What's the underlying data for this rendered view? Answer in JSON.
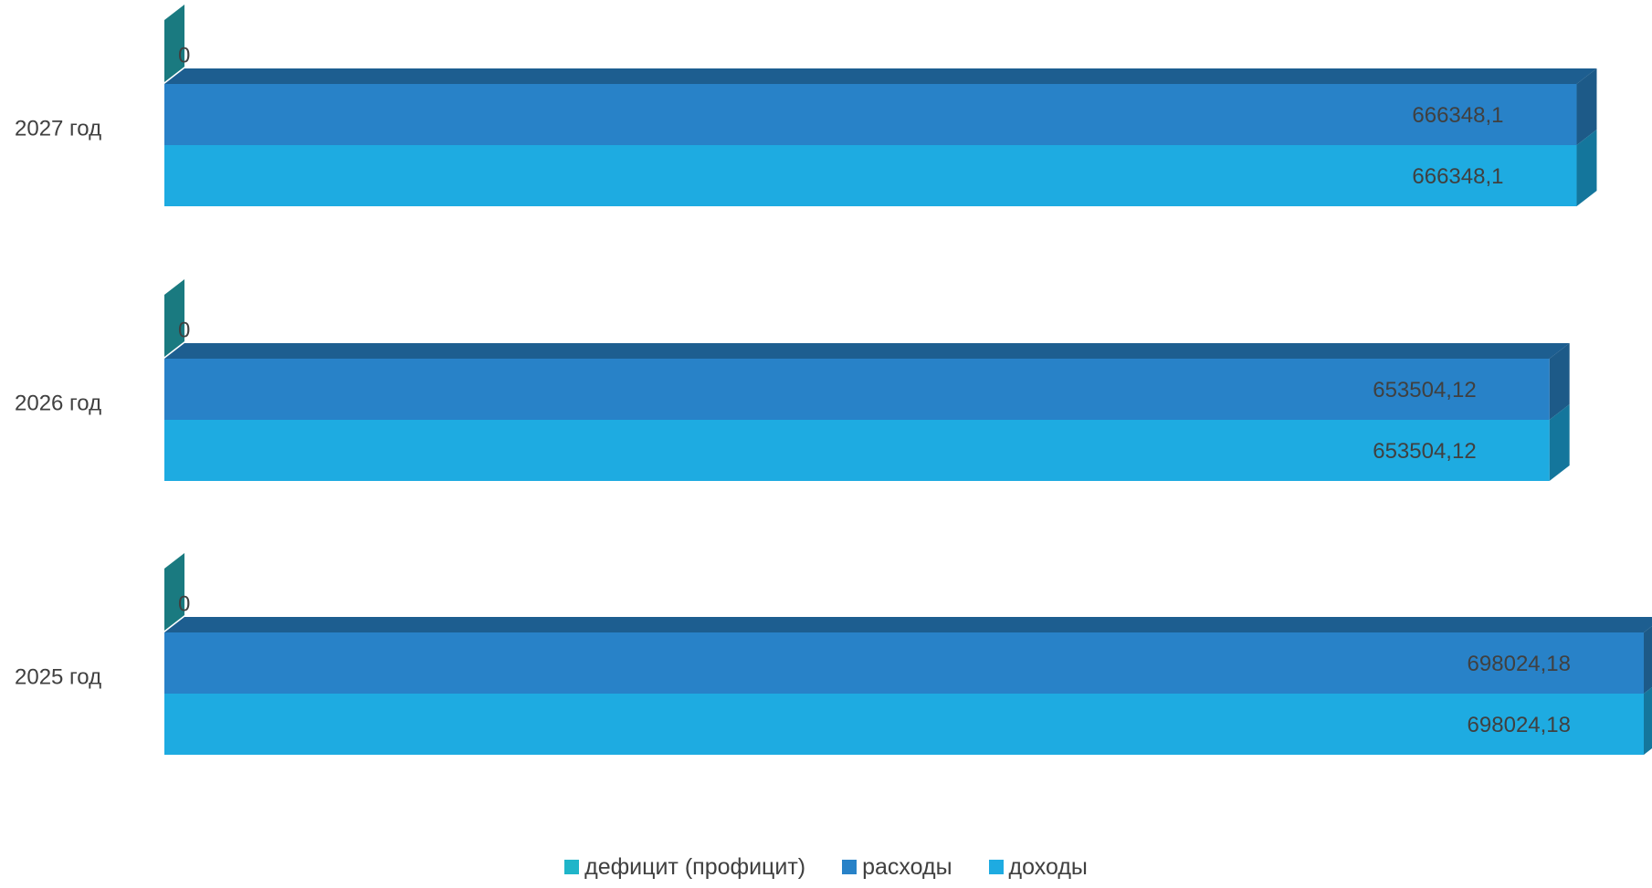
{
  "chart_data": {
    "type": "bar",
    "orientation": "horizontal",
    "three_d": true,
    "categories": [
      "2027 год",
      "2026 год",
      "2025 год"
    ],
    "series": [
      {
        "name": "дефицит (профицит)",
        "values": [
          0,
          0,
          0
        ],
        "labels": [
          "0",
          "0",
          "0"
        ],
        "color": "#1fb5c9",
        "side_color": "#1a7a80"
      },
      {
        "name": "расходы",
        "values": [
          666348.1,
          653504.12,
          698024.18
        ],
        "labels": [
          "666348,1",
          "653504,12",
          "698024,18"
        ],
        "color": "#2882c8",
        "side_color": "#1d5a88"
      },
      {
        "name": "доходы",
        "values": [
          666348.1,
          653504.12,
          698024.18
        ],
        "labels": [
          "666348,1",
          "653504,12",
          "698024,18"
        ],
        "color": "#1eabe1",
        "side_color": "#14769c"
      }
    ],
    "grid": false,
    "legend_position": "bottom"
  }
}
